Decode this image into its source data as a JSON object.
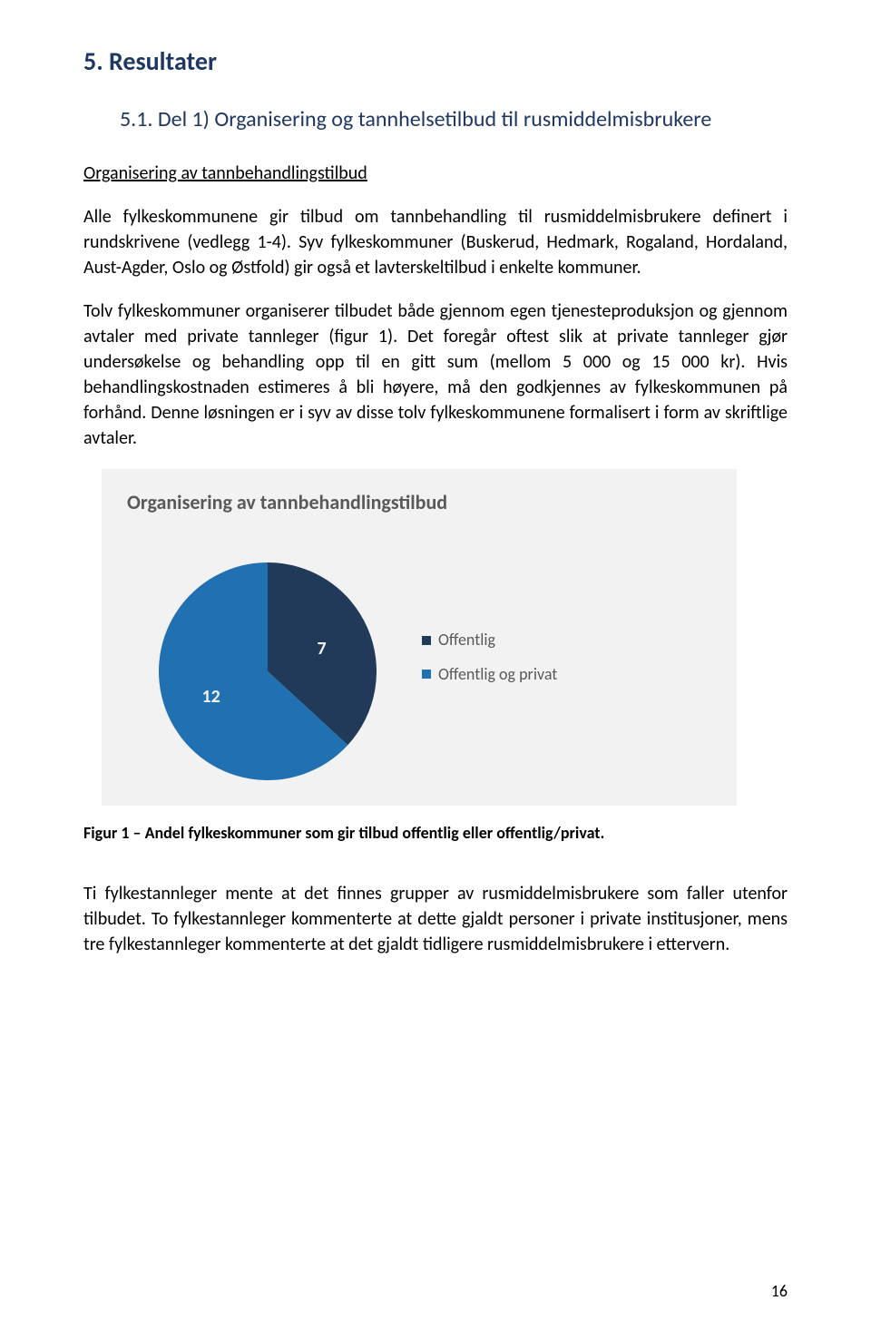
{
  "headings": {
    "h1": "5. Resultater",
    "h2": "5.1. Del 1) Organisering og tannhelsetilbud til rusmiddelmisbrukere"
  },
  "subheading": "Organisering av tannbehandlingstilbud",
  "paragraphs": {
    "p1": "Alle fylkeskommunene gir tilbud om tannbehandling til rusmiddelmisbrukere definert i rundskrivene (vedlegg 1-4). Syv fylkeskommuner (Buskerud, Hedmark, Rogaland, Hordaland, Aust-Agder, Oslo og Østfold) gir også et lavterskeltilbud i enkelte kommuner.",
    "p2": "Tolv fylkeskommuner organiserer tilbudet både gjennom egen tjenesteproduksjon og gjennom avtaler med private tannleger (figur 1). Det foregår oftest slik at private tannleger gjør undersøkelse og behandling opp til en gitt sum (mellom 5 000 og 15 000 kr). Hvis behandlingskostnaden estimeres å bli høyere, må den godkjennes av fylkeskommunen på forhånd. Denne løsningen er i syv av disse tolv fylkeskommunene formalisert i form av skriftlige avtaler.",
    "p3": "Ti fylkestannleger mente at det finnes grupper av rusmiddelmisbrukere som faller utenfor tilbudet. To fylkestannleger kommenterte at dette gjaldt personer i private institusjoner, mens tre fylkestannleger kommenterte at det gjaldt tidligere rusmiddelmisbrukere i ettervern."
  },
  "chart": {
    "type": "pie",
    "title": "Organisering av tannbehandlingstilbud",
    "title_color": "#595959",
    "background_color": "#f2f2f2",
    "slices": [
      {
        "label": "Offentlig",
        "value": 7,
        "color": "#213a59"
      },
      {
        "label": "Offentlig og privat",
        "value": 12,
        "color": "#2171b2"
      }
    ],
    "label_color": "#f2f2f2",
    "legend": {
      "text_color": "#595959",
      "items": [
        {
          "label": "Offentlig",
          "swatch": "#213a59"
        },
        {
          "label": "Offentlig og privat",
          "swatch": "#2171b2"
        }
      ]
    }
  },
  "figure_caption": "Figur 1 – Andel fylkeskommuner som gir tilbud offentlig eller offentlig/privat.",
  "page_number": "16"
}
